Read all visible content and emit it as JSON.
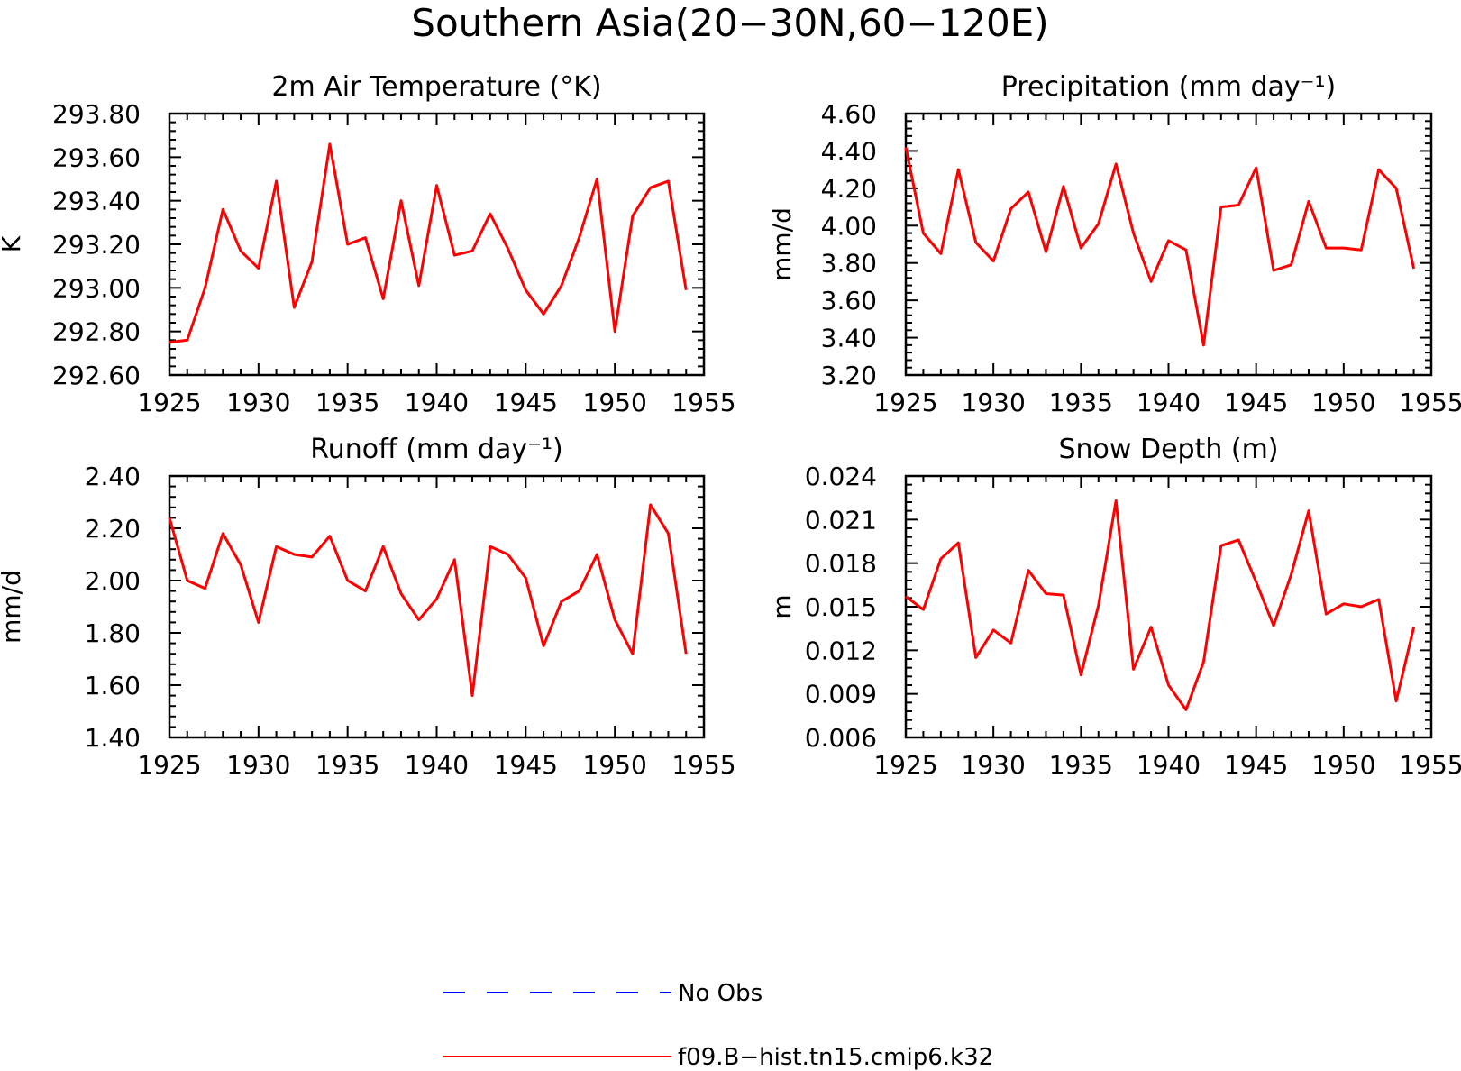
{
  "figure": {
    "title": "Southern Asia(20−30N,60−120E)"
  },
  "legend": {
    "placement": "bottom-center",
    "entries": [
      {
        "label": "No Obs",
        "color": "#0000ff",
        "style": "dashed"
      },
      {
        "label": "f09.B−hist.tn15.cmip6.k32",
        "color": "#ff0000",
        "style": "solid"
      }
    ]
  },
  "chart_data": [
    {
      "type": "line",
      "title": "2m Air Temperature (°K)",
      "ylabel": "K",
      "xlim": [
        1925,
        1955
      ],
      "ylim": [
        292.6,
        293.8
      ],
      "xticks": [
        1925,
        1930,
        1935,
        1940,
        1945,
        1950,
        1955
      ],
      "yticks": [
        "292.60",
        "292.80",
        "293.00",
        "293.20",
        "293.40",
        "293.60",
        "293.80"
      ],
      "x": [
        1925,
        1926,
        1927,
        1928,
        1929,
        1930,
        1931,
        1932,
        1933,
        1934,
        1935,
        1936,
        1937,
        1938,
        1939,
        1940,
        1941,
        1942,
        1943,
        1944,
        1945,
        1946,
        1947,
        1948,
        1949,
        1950,
        1951,
        1952,
        1953,
        1954
      ],
      "series": [
        {
          "color": "#ff0000",
          "values": [
            292.75,
            292.76,
            293.0,
            293.36,
            293.17,
            293.09,
            293.49,
            292.91,
            293.12,
            293.66,
            293.2,
            293.23,
            292.95,
            293.4,
            293.01,
            293.47,
            293.15,
            293.17,
            293.34,
            293.18,
            292.99,
            292.88,
            293.01,
            293.23,
            293.5,
            292.8,
            293.33,
            293.46,
            293.49,
            292.99
          ]
        }
      ]
    },
    {
      "type": "line",
      "title": "Precipitation (mm day⁻¹)",
      "ylabel": "mm/d",
      "xlim": [
        1925,
        1955
      ],
      "ylim": [
        3.2,
        4.6
      ],
      "xticks": [
        1925,
        1930,
        1935,
        1940,
        1945,
        1950,
        1955
      ],
      "yticks": [
        "3.20",
        "3.40",
        "3.60",
        "3.80",
        "4.00",
        "4.20",
        "4.40",
        "4.60"
      ],
      "x": [
        1925,
        1926,
        1927,
        1928,
        1929,
        1930,
        1931,
        1932,
        1933,
        1934,
        1935,
        1936,
        1937,
        1938,
        1939,
        1940,
        1941,
        1942,
        1943,
        1944,
        1945,
        1946,
        1947,
        1948,
        1949,
        1950,
        1951,
        1952,
        1953,
        1954
      ],
      "series": [
        {
          "color": "#ff0000",
          "values": [
            4.42,
            3.96,
            3.85,
            4.3,
            3.91,
            3.81,
            4.09,
            4.18,
            3.86,
            4.21,
            3.88,
            4.01,
            4.33,
            3.96,
            3.7,
            3.92,
            3.87,
            3.36,
            4.1,
            4.11,
            4.31,
            3.76,
            3.79,
            4.13,
            3.88,
            3.88,
            3.87,
            4.3,
            4.2,
            3.77
          ]
        }
      ]
    },
    {
      "type": "line",
      "title": "Runoff (mm day⁻¹)",
      "ylabel": "mm/d",
      "xlim": [
        1925,
        1955
      ],
      "ylim": [
        1.4,
        2.4
      ],
      "xticks": [
        1925,
        1930,
        1935,
        1940,
        1945,
        1950,
        1955
      ],
      "yticks": [
        "1.40",
        "1.60",
        "1.80",
        "2.00",
        "2.20",
        "2.40"
      ],
      "x": [
        1925,
        1926,
        1927,
        1928,
        1929,
        1930,
        1931,
        1932,
        1933,
        1934,
        1935,
        1936,
        1937,
        1938,
        1939,
        1940,
        1941,
        1942,
        1943,
        1944,
        1945,
        1946,
        1947,
        1948,
        1949,
        1950,
        1951,
        1952,
        1953,
        1954
      ],
      "series": [
        {
          "color": "#ff0000",
          "values": [
            2.24,
            2.0,
            1.97,
            2.18,
            2.06,
            1.84,
            2.13,
            2.1,
            2.09,
            2.17,
            2.0,
            1.96,
            2.13,
            1.95,
            1.85,
            1.93,
            2.08,
            1.56,
            2.13,
            2.1,
            2.01,
            1.75,
            1.92,
            1.96,
            2.1,
            1.85,
            1.72,
            2.29,
            2.18,
            1.72
          ]
        }
      ]
    },
    {
      "type": "line",
      "title": "Snow Depth (m)",
      "ylabel": "m",
      "xlim": [
        1925,
        1955
      ],
      "ylim": [
        0.006,
        0.024
      ],
      "xticks": [
        1925,
        1930,
        1935,
        1940,
        1945,
        1950,
        1955
      ],
      "yticks": [
        "0.006",
        "0.009",
        "0.012",
        "0.015",
        "0.018",
        "0.021",
        "0.024"
      ],
      "x": [
        1925,
        1926,
        1927,
        1928,
        1929,
        1930,
        1931,
        1932,
        1933,
        1934,
        1935,
        1936,
        1937,
        1938,
        1939,
        1940,
        1941,
        1942,
        1943,
        1944,
        1945,
        1946,
        1947,
        1948,
        1949,
        1950,
        1951,
        1952,
        1953,
        1954
      ],
      "series": [
        {
          "color": "#ff0000",
          "values": [
            0.0157,
            0.0148,
            0.0183,
            0.0194,
            0.0115,
            0.0134,
            0.0125,
            0.0175,
            0.0159,
            0.0158,
            0.0103,
            0.0151,
            0.0223,
            0.0107,
            0.0136,
            0.0096,
            0.0079,
            0.0112,
            0.0192,
            0.0196,
            0.0167,
            0.0137,
            0.0172,
            0.0216,
            0.0145,
            0.0152,
            0.015,
            0.0155,
            0.0085,
            0.0136
          ]
        }
      ]
    }
  ]
}
